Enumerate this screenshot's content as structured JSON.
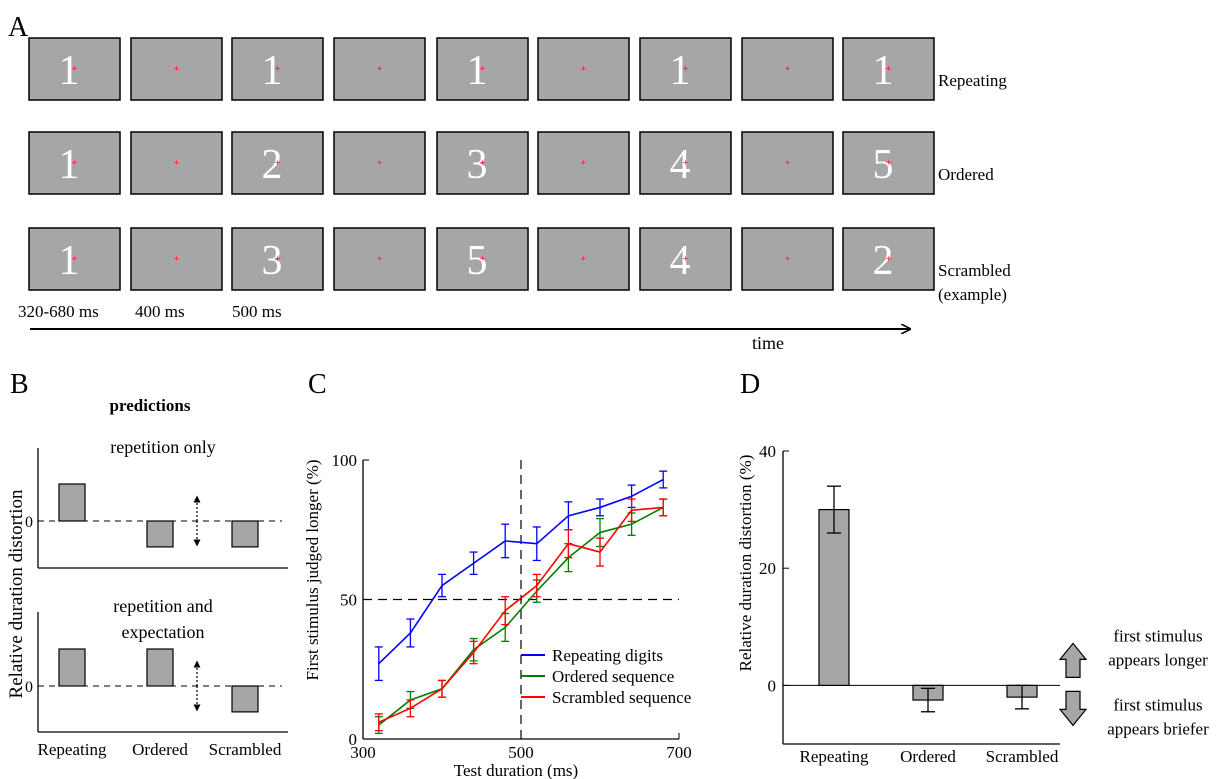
{
  "panel_labels": [
    "A",
    "B",
    "C",
    "D"
  ],
  "panel_a": {
    "rows": [
      {
        "label_lines": [
          "Repeating"
        ],
        "digits": [
          "1",
          "1",
          "1",
          "1",
          "1"
        ]
      },
      {
        "label_lines": [
          "Ordered"
        ],
        "digits": [
          "1",
          "2",
          "3",
          "4",
          "5"
        ]
      },
      {
        "label_lines": [
          "Scrambled",
          "(example)"
        ],
        "digits": [
          "1",
          "3",
          "5",
          "4",
          "2"
        ]
      }
    ],
    "durations": [
      "320-680 ms",
      "400 ms",
      "500 ms"
    ],
    "time_label": "time",
    "colors": {
      "screen": "#a6a6a6",
      "fixation": "#ff0000",
      "digit": "#ffffff"
    }
  },
  "panel_b": {
    "title": "predictions",
    "ylabel": "Relative duration distortion",
    "categories": [
      "Repeating",
      "Ordered",
      "Scrambled"
    ],
    "zero_label": "0",
    "subplots": [
      {
        "title_lines": [
          "repetition only"
        ],
        "values": [
          1,
          -0.7,
          -0.7
        ]
      },
      {
        "title_lines": [
          "repetition and",
          "expectation"
        ],
        "values": [
          1,
          1,
          -0.7
        ]
      }
    ]
  },
  "chart_data": [
    {
      "type": "line",
      "panel": "C",
      "xlabel": "Test duration (ms)",
      "ylabel": "First stimulus judged longer (%)",
      "xlim": [
        300,
        700
      ],
      "ylim": [
        0,
        100
      ],
      "xticks": [
        300,
        500,
        700
      ],
      "yticks": [
        0,
        50,
        100
      ],
      "reference_lines": {
        "x": 500,
        "y": 50
      },
      "x": [
        320,
        360,
        400,
        440,
        480,
        520,
        560,
        600,
        640,
        680
      ],
      "legend": "lower-right",
      "series": [
        {
          "name": "Repeating digits",
          "color": "#0000ff",
          "values": [
            27,
            38,
            55,
            63,
            71,
            70,
            80,
            83,
            87,
            93
          ],
          "errors": [
            6,
            5,
            4,
            4,
            6,
            6,
            5,
            3,
            4,
            3
          ]
        },
        {
          "name": "Ordered sequence",
          "color": "#008000",
          "values": [
            5,
            14,
            18,
            32,
            40,
            53,
            65,
            74,
            77,
            83
          ],
          "errors": [
            3,
            3,
            3,
            4,
            5,
            4,
            5,
            5,
            4,
            3
          ]
        },
        {
          "name": "Scrambled sequence",
          "color": "#ff0000",
          "values": [
            6,
            11,
            18,
            31,
            46,
            55,
            70,
            67,
            82,
            83
          ],
          "errors": [
            3,
            3,
            3,
            4,
            5,
            4,
            5,
            5,
            4,
            3
          ]
        }
      ]
    },
    {
      "type": "bar",
      "panel": "D",
      "ylabel": "Relative duration distortion (%)",
      "categories": [
        "Repeating",
        "Ordered",
        "Scrambled"
      ],
      "values": [
        30,
        -2.5,
        -2
      ],
      "errors": [
        4,
        2,
        2
      ],
      "ylim": [
        -10,
        40
      ],
      "yticks": [
        0,
        20,
        40
      ],
      "bar_color": "#a6a6a6",
      "annotations": [
        [
          "first stimulus",
          "appears longer"
        ],
        [
          "first stimulus",
          "appears briefer"
        ]
      ]
    }
  ]
}
